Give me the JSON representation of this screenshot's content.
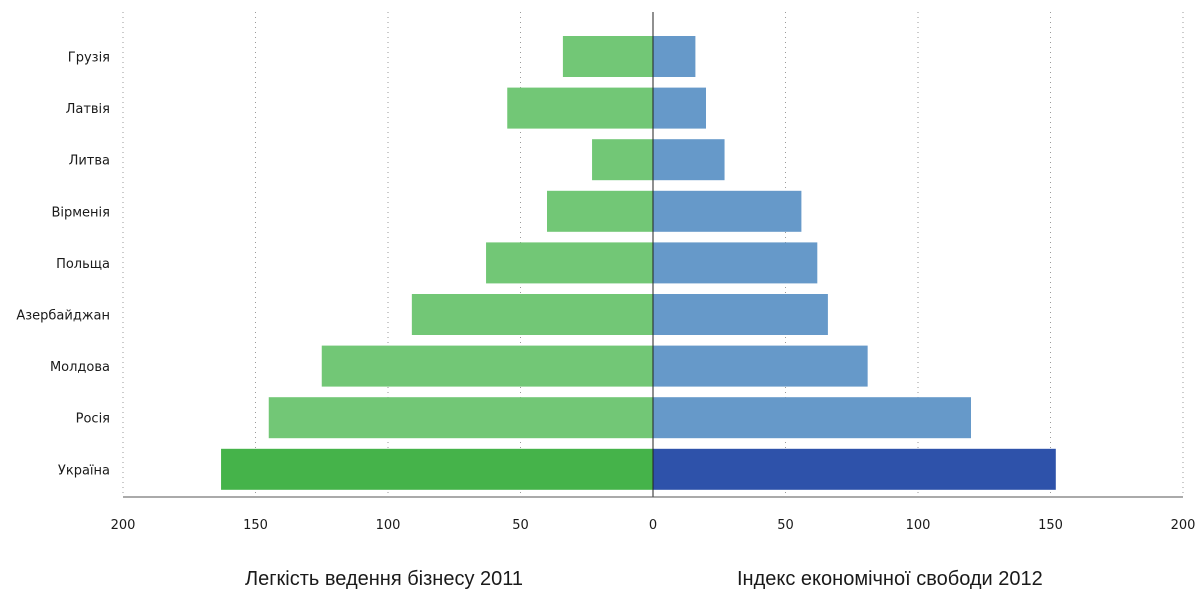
{
  "chart_data": {
    "type": "bar",
    "orientation": "horizontal-diverging",
    "categories": [
      "Грузія",
      "Латвія",
      "Литва",
      "Вірменія",
      "Польща",
      "Азербайджан",
      "Молдова",
      "Росія",
      "Україна"
    ],
    "series": [
      {
        "name": "Легкість ведення бізнесу 2011",
        "side": "left",
        "values": [
          34,
          55,
          23,
          40,
          63,
          91,
          125,
          145,
          163
        ],
        "color": "#72c776",
        "highlight_color": "#45b34a"
      },
      {
        "name": "Індекс економічної свободи 2012",
        "side": "right",
        "values": [
          16,
          20,
          27,
          56,
          62,
          66,
          81,
          120,
          152
        ],
        "color": "#6699c9",
        "highlight_color": "#2e52aa"
      }
    ],
    "highlight_category": "Україна",
    "xlim": [
      -200,
      200
    ],
    "xticks": [
      -200,
      -150,
      -100,
      -50,
      0,
      50,
      100,
      150,
      200
    ],
    "xtick_labels": [
      "200",
      "150",
      "100",
      "50",
      "0",
      "50",
      "100",
      "150",
      "200"
    ],
    "grid": "vertical-dotted",
    "legend": "none"
  }
}
